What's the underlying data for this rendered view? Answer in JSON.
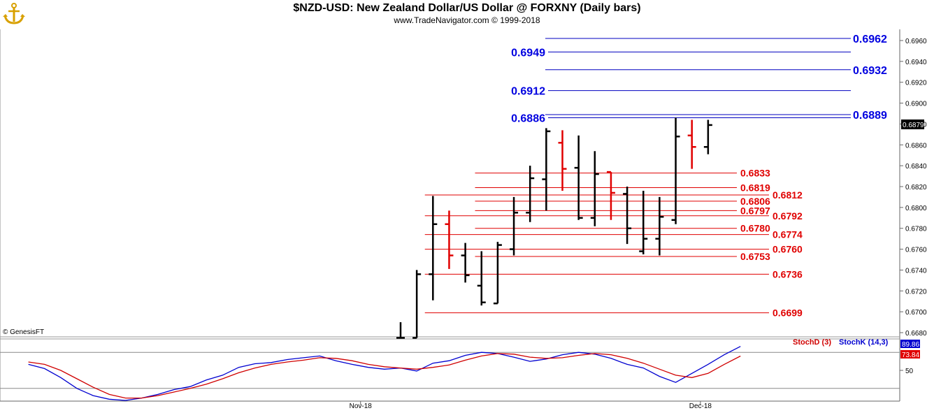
{
  "header": {
    "title": "$NZD-USD:  New Zealand Dollar/US Dollar @ FORXNY  (Daily bars)",
    "subtitle": "www.TradeNavigator.com © 1999-2018",
    "logo_icon": "anchor-logo"
  },
  "copyright": "© GenesisFT",
  "price_tag": "0.6879",
  "chart_data": [
    {
      "type": "ohlc",
      "title": "$NZD-USD:  New Zealand Dollar/US Dollar @ FORXNY  (Daily bars)",
      "ylim": [
        0.6675,
        0.6975
      ],
      "y_ticks": [
        "0.6680",
        "0.6700",
        "0.6720",
        "0.6740",
        "0.6760",
        "0.6780",
        "0.6800",
        "0.6820",
        "0.6840",
        "0.6860",
        "0.6880",
        "0.6900",
        "0.6920",
        "0.6940",
        "0.6960"
      ],
      "x_ticks": [
        {
          "label": "Nov-18",
          "index": 1.5
        },
        {
          "label": "Dec-18",
          "index": 22.5
        }
      ],
      "bars": [
        {
          "o": 0.6675,
          "h": 0.669,
          "l": 0.6675,
          "c": 0.6675,
          "color": "black"
        },
        {
          "o": 0.6675,
          "h": 0.674,
          "l": 0.6675,
          "c": 0.6736,
          "color": "black"
        },
        {
          "o": 0.6736,
          "h": 0.6811,
          "l": 0.6711,
          "c": 0.6784,
          "color": "black"
        },
        {
          "o": 0.6784,
          "h": 0.6797,
          "l": 0.6741,
          "c": 0.6754,
          "color": "red"
        },
        {
          "o": 0.6754,
          "h": 0.6766,
          "l": 0.6728,
          "c": 0.6735,
          "color": "black"
        },
        {
          "o": 0.6725,
          "h": 0.6758,
          "l": 0.6706,
          "c": 0.6709,
          "color": "black"
        },
        {
          "o": 0.6708,
          "h": 0.6767,
          "l": 0.6708,
          "c": 0.6764,
          "color": "black"
        },
        {
          "o": 0.676,
          "h": 0.681,
          "l": 0.6754,
          "c": 0.6795,
          "color": "black"
        },
        {
          "o": 0.6795,
          "h": 0.684,
          "l": 0.6786,
          "c": 0.6828,
          "color": "black"
        },
        {
          "o": 0.6827,
          "h": 0.6876,
          "l": 0.6797,
          "c": 0.6873,
          "color": "black"
        },
        {
          "o": 0.6862,
          "h": 0.6874,
          "l": 0.6816,
          "c": 0.6837,
          "color": "red"
        },
        {
          "o": 0.6838,
          "h": 0.6869,
          "l": 0.6788,
          "c": 0.679,
          "color": "black"
        },
        {
          "o": 0.679,
          "h": 0.6854,
          "l": 0.6782,
          "c": 0.6832,
          "color": "black"
        },
        {
          "o": 0.6834,
          "h": 0.6834,
          "l": 0.6788,
          "c": 0.6814,
          "color": "red"
        },
        {
          "o": 0.6813,
          "h": 0.682,
          "l": 0.6765,
          "c": 0.678,
          "color": "black"
        },
        {
          "o": 0.6758,
          "h": 0.6816,
          "l": 0.6755,
          "c": 0.677,
          "color": "black"
        },
        {
          "o": 0.677,
          "h": 0.681,
          "l": 0.6754,
          "c": 0.6791,
          "color": "black"
        },
        {
          "o": 0.6788,
          "h": 0.6886,
          "l": 0.6784,
          "c": 0.6868,
          "color": "black"
        },
        {
          "o": 0.6869,
          "h": 0.6884,
          "l": 0.6837,
          "c": 0.6858,
          "color": "red"
        },
        {
          "o": 0.6858,
          "h": 0.6884,
          "l": 0.6851,
          "c": 0.6879,
          "color": "black"
        }
      ],
      "levels_blue": [
        {
          "value": 0.6962,
          "label": "0.6962",
          "side": "right",
          "from": 9.0
        },
        {
          "value": 0.6949,
          "label": "0.6949",
          "side": "left",
          "from": 9.0
        },
        {
          "value": 0.6932,
          "label": "0.6932",
          "side": "right",
          "from": 9.0
        },
        {
          "value": 0.6912,
          "label": "0.6912",
          "side": "left",
          "from": 9.0
        },
        {
          "value": 0.6889,
          "label": "0.6889",
          "side": "right",
          "from": 9.0
        },
        {
          "value": 0.6886,
          "label": "0.6886",
          "side": "left",
          "from": 9.0
        }
      ],
      "levels_red": [
        {
          "value": 0.6833,
          "label": "0.6833",
          "side": "left",
          "from": 4.6
        },
        {
          "value": 0.6819,
          "label": "0.6819",
          "side": "left",
          "from": 4.6
        },
        {
          "value": 0.6812,
          "label": "0.6812",
          "side": "right",
          "from": 1.5
        },
        {
          "value": 0.6806,
          "label": "0.6806",
          "side": "left",
          "from": 4.6
        },
        {
          "value": 0.6797,
          "label": "0.6797",
          "side": "left",
          "from": 4.6
        },
        {
          "value": 0.6792,
          "label": "0.6792",
          "side": "right",
          "from": 1.5
        },
        {
          "value": 0.678,
          "label": "0.6780",
          "side": "left",
          "from": 4.6
        },
        {
          "value": 0.6774,
          "label": "0.6774",
          "side": "right",
          "from": 1.5
        },
        {
          "value": 0.676,
          "label": "0.6760",
          "side": "right",
          "from": 1.5
        },
        {
          "value": 0.6753,
          "label": "0.6753",
          "side": "left",
          "from": 4.6
        },
        {
          "value": 0.6736,
          "label": "0.6736",
          "side": "right",
          "from": 1.5
        },
        {
          "value": 0.6699,
          "label": "0.6699",
          "side": "right",
          "from": 1.5
        }
      ]
    },
    {
      "type": "line",
      "title": "",
      "ylim": [
        0,
        100
      ],
      "y_ticks": [
        "50"
      ],
      "ref_lines": [
        80,
        20
      ],
      "legend": [
        "StochD (3)",
        "StochK (14,3)"
      ],
      "last_values": {
        "k": "89.86",
        "d": "73.84"
      },
      "x_start": -23,
      "series": [
        {
          "name": "StochK (14,3)",
          "color": "#0000d0",
          "values": [
            60,
            53,
            38,
            20,
            8,
            2,
            0,
            4,
            10,
            18,
            23,
            34,
            42,
            55,
            61,
            63,
            68,
            71,
            74,
            66,
            60,
            55,
            52,
            54,
            49,
            62,
            66,
            75,
            80,
            78,
            72,
            65,
            69,
            76,
            80,
            77,
            70,
            60,
            54,
            40,
            30,
            45,
            60,
            76,
            89.86
          ]
        },
        {
          "name": "StochD (3)",
          "color": "#d00000",
          "values": [
            64,
            60,
            50,
            36,
            22,
            10,
            4,
            4,
            8,
            14,
            20,
            27,
            36,
            46,
            54,
            60,
            64,
            67,
            71,
            70,
            66,
            60,
            56,
            54,
            52,
            55,
            59,
            67,
            74,
            78,
            77,
            72,
            70,
            71,
            75,
            78,
            76,
            70,
            62,
            52,
            42,
            38,
            45,
            60,
            73.84
          ]
        }
      ]
    }
  ]
}
